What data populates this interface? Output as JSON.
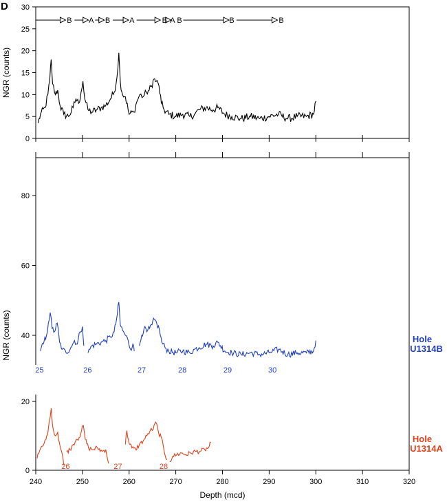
{
  "panel_letter": "D",
  "colors": {
    "composite": "#000000",
    "holeB": "#1f3fbf",
    "holeA": "#e0401a"
  },
  "chart_data": [
    {
      "type": "line",
      "name": "top-composite",
      "ylabel": "NGR (counts)",
      "ylim": [
        0,
        30
      ],
      "yticks": [
        0,
        5,
        10,
        15,
        20,
        25,
        30
      ],
      "xlim": [
        240,
        320
      ],
      "sequence_labels": [
        {
          "x": 247.2,
          "text": "B"
        },
        {
          "x": 251.9,
          "text": "A"
        },
        {
          "x": 255.4,
          "text": "B"
        },
        {
          "x": 260.6,
          "text": "A"
        },
        {
          "x": 267.6,
          "text": "B"
        },
        {
          "x": 269.3,
          "text": "A"
        },
        {
          "x": 270.8,
          "text": "B"
        },
        {
          "x": 282.0,
          "text": "B"
        },
        {
          "x": 292.6,
          "text": "B"
        }
      ],
      "sequence_arrows": [
        [
          240.0,
          246.4
        ],
        [
          248.3,
          251.3
        ],
        [
          252.7,
          254.7
        ],
        [
          256.5,
          259.9
        ],
        [
          261.6,
          266.7
        ],
        [
          268.5,
          269.0
        ],
        [
          271.6,
          281.4
        ],
        [
          283.0,
          291.8
        ]
      ],
      "key_points": [
        [
          240.5,
          3.5
        ],
        [
          241.0,
          5.5
        ],
        [
          242.0,
          7.0
        ],
        [
          242.6,
          10.0
        ],
        [
          243.0,
          13.5
        ],
        [
          243.3,
          18.0
        ],
        [
          243.6,
          12.5
        ],
        [
          244.2,
          10.0
        ],
        [
          244.7,
          11.0
        ],
        [
          245.2,
          7.5
        ],
        [
          246.0,
          5.5
        ],
        [
          247.0,
          5.0
        ],
        [
          248.0,
          7.0
        ],
        [
          248.6,
          9.0
        ],
        [
          249.2,
          8.0
        ],
        [
          249.7,
          10.5
        ],
        [
          250.1,
          13.0
        ],
        [
          250.5,
          9.0
        ],
        [
          251.2,
          6.5
        ],
        [
          252.0,
          6.0
        ],
        [
          253.0,
          6.5
        ],
        [
          254.0,
          7.0
        ],
        [
          255.0,
          7.5
        ],
        [
          256.0,
          9.0
        ],
        [
          256.8,
          10.5
        ],
        [
          257.4,
          14.0
        ],
        [
          257.8,
          19.5
        ],
        [
          258.1,
          13.0
        ],
        [
          258.6,
          10.0
        ],
        [
          259.2,
          9.5
        ],
        [
          260.0,
          5.5
        ],
        [
          261.0,
          6.0
        ],
        [
          261.7,
          8.5
        ],
        [
          262.3,
          10.0
        ],
        [
          263.0,
          9.5
        ],
        [
          263.7,
          10.5
        ],
        [
          264.3,
          11.0
        ],
        [
          264.8,
          12.0
        ],
        [
          265.3,
          13.5
        ],
        [
          265.8,
          13.0
        ],
        [
          266.4,
          12.0
        ],
        [
          266.9,
          8.0
        ],
        [
          267.5,
          6.5
        ],
        [
          268.5,
          5.5
        ],
        [
          270.0,
          5.0
        ],
        [
          271.5,
          5.5
        ],
        [
          273.0,
          5.0
        ],
        [
          274.0,
          5.5
        ],
        [
          275.0,
          6.5
        ],
        [
          276.5,
          7.0
        ],
        [
          278.0,
          6.5
        ],
        [
          279.0,
          7.0
        ],
        [
          280.5,
          5.5
        ],
        [
          282.0,
          5.0
        ],
        [
          284.0,
          4.5
        ],
        [
          286.0,
          5.0
        ],
        [
          288.0,
          4.5
        ],
        [
          290.0,
          5.0
        ],
        [
          292.0,
          5.5
        ],
        [
          294.0,
          4.5
        ],
        [
          296.0,
          5.0
        ],
        [
          298.0,
          5.0
        ],
        [
          299.5,
          5.5
        ],
        [
          300.0,
          8.5
        ]
      ]
    },
    {
      "type": "line",
      "name": "hole-U1314B",
      "ylabel": "NGR (counts)",
      "ylim": [
        30,
        90
      ],
      "yticks": [
        40,
        60,
        80
      ],
      "xlim": [
        240,
        320
      ],
      "hole_label": [
        "Hole",
        "U1314B"
      ],
      "core_labels": [
        {
          "x": 240.8,
          "text": "25"
        },
        {
          "x": 251.1,
          "text": "26"
        },
        {
          "x": 262.7,
          "text": "27"
        },
        {
          "x": 271.4,
          "text": "28"
        },
        {
          "x": 281.1,
          "text": "29"
        },
        {
          "x": 290.7,
          "text": "30"
        }
      ],
      "segments": [
        [
          [
            241.0,
            35.5
          ],
          [
            241.6,
            37.5
          ],
          [
            242.3,
            40.0
          ],
          [
            242.7,
            43.5
          ],
          [
            243.1,
            46.5
          ],
          [
            243.5,
            42.0
          ],
          [
            244.0,
            41.0
          ],
          [
            244.6,
            43.5
          ],
          [
            245.1,
            38.0
          ],
          [
            245.7,
            36.0
          ],
          [
            246.5,
            35.0
          ],
          [
            247.5,
            36.5
          ],
          [
            248.3,
            38.5
          ],
          [
            248.9,
            37.5
          ],
          [
            249.5,
            41.0
          ],
          [
            250.0,
            42.5
          ],
          [
            250.3,
            37.0
          ]
        ],
        [
          [
            251.2,
            35.0
          ],
          [
            252.0,
            37.0
          ],
          [
            253.0,
            37.5
          ],
          [
            254.0,
            38.0
          ],
          [
            255.0,
            38.5
          ],
          [
            256.0,
            39.5
          ],
          [
            256.8,
            41.0
          ],
          [
            257.3,
            44.5
          ],
          [
            257.8,
            49.5
          ],
          [
            258.1,
            43.0
          ],
          [
            258.6,
            41.5
          ],
          [
            259.2,
            40.0
          ],
          [
            259.8,
            38.5
          ],
          [
            260.3,
            36.0
          ],
          [
            260.8,
            37.5
          ],
          [
            261.1,
            35.5
          ]
        ],
        [
          [
            262.2,
            37.0
          ],
          [
            262.7,
            40.0
          ],
          [
            263.2,
            42.0
          ],
          [
            263.8,
            41.0
          ],
          [
            264.4,
            42.0
          ],
          [
            264.9,
            43.0
          ],
          [
            265.4,
            44.5
          ],
          [
            265.9,
            43.5
          ],
          [
            266.5,
            41.5
          ],
          [
            267.0,
            38.0
          ],
          [
            267.7,
            36.5
          ],
          [
            268.5,
            35.5
          ],
          [
            270.0,
            35.0
          ],
          [
            271.5,
            35.5
          ],
          [
            273.0,
            35.0
          ],
          [
            274.0,
            36.0
          ],
          [
            275.0,
            36.5
          ],
          [
            276.5,
            37.5
          ],
          [
            278.0,
            37.0
          ],
          [
            279.0,
            38.0
          ],
          [
            280.5,
            35.5
          ],
          [
            282.0,
            35.0
          ],
          [
            284.0,
            34.5
          ],
          [
            286.0,
            35.0
          ],
          [
            288.0,
            34.5
          ],
          [
            290.0,
            35.0
          ],
          [
            292.0,
            36.0
          ],
          [
            294.0,
            34.5
          ],
          [
            296.0,
            35.0
          ],
          [
            298.0,
            35.0
          ],
          [
            299.5,
            35.5
          ],
          [
            300.0,
            38.5
          ]
        ]
      ]
    },
    {
      "type": "line",
      "name": "hole-U1314A",
      "ylim": [
        0,
        27
      ],
      "yticks": [
        0,
        20
      ],
      "xlim": [
        240,
        320
      ],
      "xticks": [
        240,
        250,
        260,
        270,
        280,
        290,
        300,
        310,
        320
      ],
      "xlabel": "Depth (mcd)",
      "hole_label": [
        "Hole",
        "U1314A"
      ],
      "core_labels": [
        {
          "x": 246.4,
          "text": "26"
        },
        {
          "x": 257.6,
          "text": "27"
        },
        {
          "x": 267.4,
          "text": "28"
        }
      ],
      "segments": [
        [
          [
            240.3,
            3.5
          ],
          [
            240.8,
            5.5
          ],
          [
            241.5,
            7.0
          ],
          [
            242.2,
            9.0
          ],
          [
            242.7,
            12.0
          ],
          [
            243.1,
            15.5
          ],
          [
            243.3,
            18.0
          ],
          [
            243.6,
            13.0
          ],
          [
            244.2,
            10.0
          ],
          [
            244.7,
            11.0
          ],
          [
            245.2,
            7.0
          ],
          [
            245.7,
            4.5
          ],
          [
            246.0,
            1.5
          ]
        ],
        [
          [
            246.6,
            5.5
          ],
          [
            247.3,
            6.0
          ],
          [
            248.0,
            7.5
          ],
          [
            248.7,
            9.0
          ],
          [
            249.3,
            9.5
          ],
          [
            249.8,
            11.5
          ],
          [
            250.2,
            13.0
          ],
          [
            250.6,
            9.0
          ],
          [
            251.3,
            6.5
          ],
          [
            252.2,
            6.0
          ],
          [
            253.2,
            6.5
          ],
          [
            254.2,
            5.5
          ],
          [
            255.0,
            6.0
          ],
          [
            255.6,
            2.0
          ]
        ],
        [
          [
            259.2,
            7.5
          ],
          [
            259.5,
            11.5
          ],
          [
            259.9,
            8.5
          ],
          [
            260.6,
            6.5
          ],
          [
            261.4,
            6.0
          ],
          [
            262.2,
            7.5
          ],
          [
            263.0,
            8.5
          ],
          [
            263.8,
            10.0
          ],
          [
            264.5,
            11.5
          ],
          [
            265.2,
            12.0
          ],
          [
            265.7,
            14.0
          ],
          [
            266.3,
            11.0
          ],
          [
            266.9,
            9.5
          ],
          [
            267.5,
            5.5
          ],
          [
            268.1,
            3.0
          ]
        ],
        [
          [
            268.7,
            2.5
          ],
          [
            269.3,
            4.0
          ],
          [
            270.2,
            4.5
          ],
          [
            271.2,
            5.0
          ],
          [
            272.2,
            4.5
          ],
          [
            273.2,
            5.0
          ],
          [
            274.2,
            5.5
          ],
          [
            275.2,
            5.5
          ],
          [
            276.2,
            6.0
          ],
          [
            277.0,
            6.5
          ],
          [
            277.5,
            8.0
          ]
        ]
      ]
    }
  ]
}
